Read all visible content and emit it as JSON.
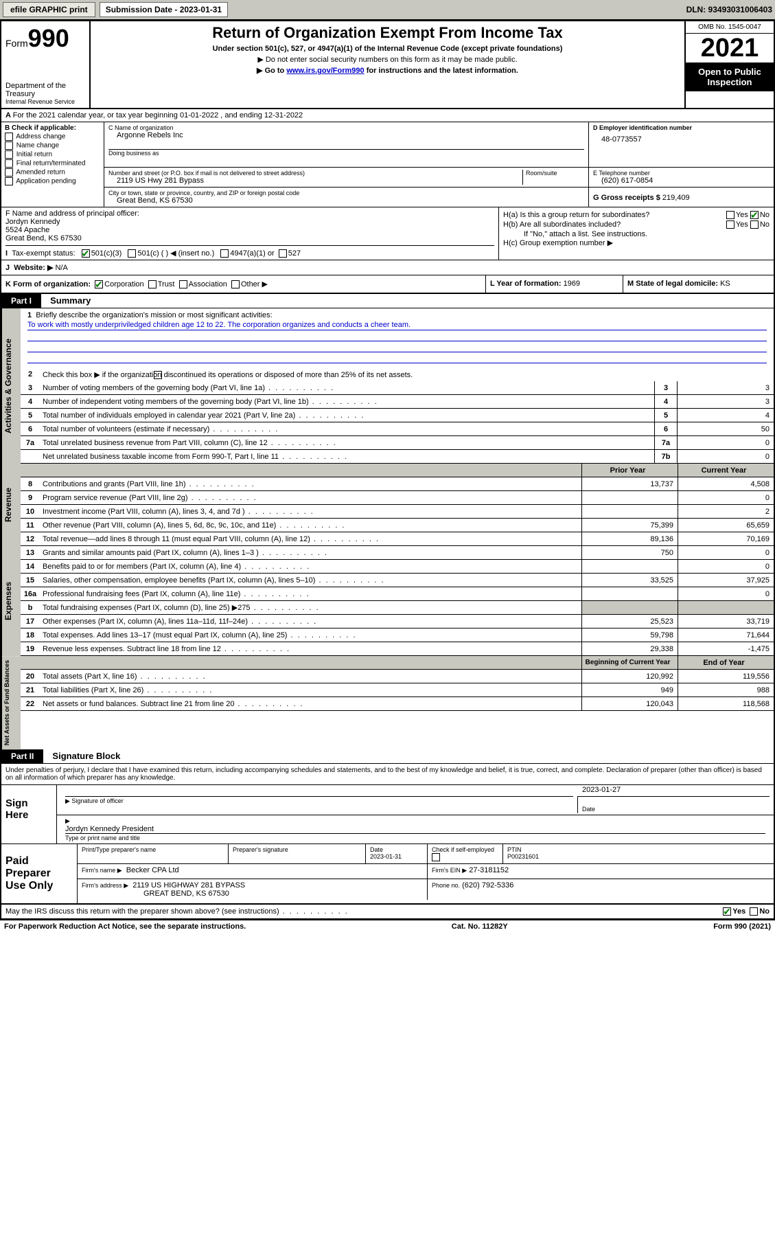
{
  "topbar": {
    "efile_btn": "efile GRAPHIC print",
    "sub_label": "Submission Date - 2023-01-31",
    "dln": "DLN: 93493031006403"
  },
  "header": {
    "form_word": "Form",
    "form_num": "990",
    "dept": "Department of the Treasury",
    "irs": "Internal Revenue Service",
    "title": "Return of Organization Exempt From Income Tax",
    "sub": "Under section 501(c), 527, or 4947(a)(1) of the Internal Revenue Code (except private foundations)",
    "note1": "▶ Do not enter social security numbers on this form as it may be made public.",
    "note2_pre": "▶ Go to ",
    "note2_link": "www.irs.gov/Form990",
    "note2_post": " for instructions and the latest information.",
    "omb": "OMB No. 1545-0047",
    "year": "2021",
    "public": "Open to Public Inspection"
  },
  "rowA": "For the 2021 calendar year, or tax year beginning 01-01-2022   , and ending 12-31-2022",
  "colB": {
    "label": "B Check if applicable:",
    "opts": [
      "Address change",
      "Name change",
      "Initial return",
      "Final return/terminated",
      "Amended return",
      "Application pending"
    ]
  },
  "c": {
    "name_lbl": "C Name of organization",
    "name": "Argonne Rebels Inc",
    "dba_lbl": "Doing business as",
    "addr_lbl": "Number and street (or P.O. box if mail is not delivered to street address)",
    "room_lbl": "Room/suite",
    "addr": "2119 US Hwy 281 Bypass",
    "city_lbl": "City or town, state or province, country, and ZIP or foreign postal code",
    "city": "Great Bend, KS  67530"
  },
  "d": {
    "lbl": "D Employer identification number",
    "val": "48-0773557"
  },
  "e": {
    "lbl": "E Telephone number",
    "val": "(620) 617-0854"
  },
  "g": {
    "lbl": "G Gross receipts $",
    "val": "219,409"
  },
  "f": {
    "lbl": "F  Name and address of principal officer:",
    "name": "Jordyn Kennedy",
    "addr1": "5524 Apache",
    "addr2": "Great Bend, KS  67530"
  },
  "h": {
    "a": "H(a)  Is this a group return for subordinates?",
    "b": "H(b)  Are all subordinates included?",
    "note": "If \"No,\" attach a list. See instructions.",
    "c": "H(c)  Group exemption number ▶",
    "yes": "Yes",
    "no": "No"
  },
  "i": {
    "lbl": "Tax-exempt status:",
    "o1": "501(c)(3)",
    "o2": "501(c) (  ) ◀ (insert no.)",
    "o3": "4947(a)(1) or",
    "o4": "527"
  },
  "j": {
    "lbl": "Website: ▶",
    "val": "N/A"
  },
  "k": {
    "lbl": "K Form of organization:",
    "o1": "Corporation",
    "o2": "Trust",
    "o3": "Association",
    "o4": "Other ▶"
  },
  "l": {
    "lbl": "L Year of formation:",
    "val": "1969"
  },
  "m": {
    "lbl": "M State of legal domicile:",
    "val": "KS"
  },
  "part1": {
    "hdr": "Part I",
    "title": "Summary"
  },
  "mission": {
    "q": "Briefly describe the organization's mission or most significant activities:",
    "a": "To work with mostly underpriviledged children age 12 to 22. The corporation organizes and conducts a cheer team."
  },
  "gov": {
    "tab": "Activities & Governance",
    "l2": "Check this box ▶        if the organization discontinued its operations or disposed of more than 25% of its net assets.",
    "rows": [
      {
        "n": "3",
        "d": "Number of voting members of the governing body (Part VI, line 1a)",
        "c": "3",
        "v": "3"
      },
      {
        "n": "4",
        "d": "Number of independent voting members of the governing body (Part VI, line 1b)",
        "c": "4",
        "v": "3"
      },
      {
        "n": "5",
        "d": "Total number of individuals employed in calendar year 2021 (Part V, line 2a)",
        "c": "5",
        "v": "4"
      },
      {
        "n": "6",
        "d": "Total number of volunteers (estimate if necessary)",
        "c": "6",
        "v": "50"
      },
      {
        "n": "7a",
        "d": "Total unrelated business revenue from Part VIII, column (C), line 12",
        "c": "7a",
        "v": "0"
      },
      {
        "n": "",
        "d": "Net unrelated business taxable income from Form 990-T, Part I, line 11",
        "c": "7b",
        "v": "0"
      }
    ]
  },
  "rev": {
    "tab": "Revenue",
    "hdr_prior": "Prior Year",
    "hdr_curr": "Current Year",
    "rows": [
      {
        "n": "8",
        "d": "Contributions and grants (Part VIII, line 1h)",
        "p": "13,737",
        "c": "4,508"
      },
      {
        "n": "9",
        "d": "Program service revenue (Part VIII, line 2g)",
        "p": "",
        "c": "0"
      },
      {
        "n": "10",
        "d": "Investment income (Part VIII, column (A), lines 3, 4, and 7d )",
        "p": "",
        "c": "2"
      },
      {
        "n": "11",
        "d": "Other revenue (Part VIII, column (A), lines 5, 6d, 8c, 9c, 10c, and 11e)",
        "p": "75,399",
        "c": "65,659"
      },
      {
        "n": "12",
        "d": "Total revenue—add lines 8 through 11 (must equal Part VIII, column (A), line 12)",
        "p": "89,136",
        "c": "70,169"
      }
    ]
  },
  "exp": {
    "tab": "Expenses",
    "rows": [
      {
        "n": "13",
        "d": "Grants and similar amounts paid (Part IX, column (A), lines 1–3 )",
        "p": "750",
        "c": "0"
      },
      {
        "n": "14",
        "d": "Benefits paid to or for members (Part IX, column (A), line 4)",
        "p": "",
        "c": "0"
      },
      {
        "n": "15",
        "d": "Salaries, other compensation, employee benefits (Part IX, column (A), lines 5–10)",
        "p": "33,525",
        "c": "37,925"
      },
      {
        "n": "16a",
        "d": "Professional fundraising fees (Part IX, column (A), line 11e)",
        "p": "",
        "c": "0"
      },
      {
        "n": "b",
        "d": "Total fundraising expenses (Part IX, column (D), line 25) ▶275",
        "p": "",
        "c": "",
        "grey": true
      },
      {
        "n": "17",
        "d": "Other expenses (Part IX, column (A), lines 11a–11d, 11f–24e)",
        "p": "25,523",
        "c": "33,719"
      },
      {
        "n": "18",
        "d": "Total expenses. Add lines 13–17 (must equal Part IX, column (A), line 25)",
        "p": "59,798",
        "c": "71,644"
      },
      {
        "n": "19",
        "d": "Revenue less expenses. Subtract line 18 from line 12",
        "p": "29,338",
        "c": "-1,475"
      }
    ]
  },
  "net": {
    "tab": "Net Assets or Fund Balances",
    "hdr_beg": "Beginning of Current Year",
    "hdr_end": "End of Year",
    "rows": [
      {
        "n": "20",
        "d": "Total assets (Part X, line 16)",
        "p": "120,992",
        "c": "119,556"
      },
      {
        "n": "21",
        "d": "Total liabilities (Part X, line 26)",
        "p": "949",
        "c": "988"
      },
      {
        "n": "22",
        "d": "Net assets or fund balances. Subtract line 21 from line 20",
        "p": "120,043",
        "c": "118,568"
      }
    ]
  },
  "part2": {
    "hdr": "Part II",
    "title": "Signature Block"
  },
  "decl": "Under penalties of perjury, I declare that I have examined this return, including accompanying schedules and statements, and to the best of my knowledge and belief, it is true, correct, and complete. Declaration of preparer (other than officer) is based on all information of which preparer has any knowledge.",
  "sign": {
    "here": "Sign Here",
    "sig_lbl": "Signature of officer",
    "date_lbl": "Date",
    "date": "2023-01-27",
    "name": "Jordyn Kennedy  President",
    "name_lbl": "Type or print name and title"
  },
  "prep": {
    "title": "Paid Preparer Use Only",
    "h1": "Print/Type preparer's name",
    "h2": "Preparer's signature",
    "h3": "Date",
    "h3v": "2023-01-31",
    "h4": "Check        if self-employed",
    "h5": "PTIN",
    "h5v": "P00231601",
    "firm_lbl": "Firm's name    ▶",
    "firm": "Becker CPA Ltd",
    "ein_lbl": "Firm's EIN ▶",
    "ein": "27-3181152",
    "addr_lbl": "Firm's address ▶",
    "addr1": "2119 US HIGHWAY 281 BYPASS",
    "addr2": "GREAT BEND, KS  67530",
    "ph_lbl": "Phone no.",
    "ph": "(620) 792-5336"
  },
  "foot": {
    "q": "May the IRS discuss this return with the preparer shown above? (see instructions)",
    "yes": "Yes",
    "no": "No",
    "pra": "For Paperwork Reduction Act Notice, see the separate instructions.",
    "cat": "Cat. No. 11282Y",
    "form": "Form 990 (2021)"
  }
}
